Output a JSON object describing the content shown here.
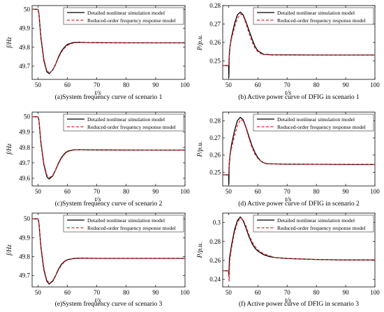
{
  "legend": {
    "detailed": "Detailed nonlinear simulation model",
    "reduced": "Reduced-order frequency response model"
  },
  "colors": {
    "detailed": "#000000",
    "reduced": "#e8202a"
  },
  "chart_data": [
    {
      "type": "line",
      "caption": "(a)System frequency curve of scenario 1",
      "xlabel": "t/s",
      "ylabel": "f/Hz",
      "xlim": [
        48,
        100
      ],
      "ylim": [
        49.63,
        50.02
      ],
      "xticks": [
        50,
        60,
        70,
        80,
        90,
        100
      ],
      "yticks": [
        49.7,
        49.8,
        49.9,
        50
      ],
      "series": [
        {
          "name": "Detailed nonlinear simulation model",
          "x": [
            48,
            50,
            50.3,
            51,
            52,
            53,
            53.8,
            55,
            56,
            57,
            58,
            59,
            60,
            62,
            64,
            66,
            70,
            80,
            90,
            100
          ],
          "y": [
            50.0,
            50.0,
            49.98,
            49.85,
            49.73,
            49.67,
            49.66,
            49.68,
            49.71,
            49.75,
            49.78,
            49.8,
            49.815,
            49.825,
            49.826,
            49.825,
            49.824,
            49.823,
            49.823,
            49.823
          ]
        },
        {
          "name": "Reduced-order frequency response model",
          "x": [
            48,
            50,
            50.3,
            51,
            52,
            53,
            54,
            55,
            56,
            57,
            58,
            59,
            60,
            62,
            64,
            66,
            70,
            80,
            90,
            100
          ],
          "y": [
            50.0,
            50.0,
            49.98,
            49.86,
            49.74,
            49.675,
            49.665,
            49.68,
            49.71,
            49.745,
            49.775,
            49.795,
            49.81,
            49.822,
            49.825,
            49.825,
            49.824,
            49.823,
            49.823,
            49.823
          ]
        }
      ]
    },
    {
      "type": "line",
      "caption": "(b)  Active power curve of DFIG in scenario 1",
      "xlabel": "t/s",
      "ylabel": "P/p.u.",
      "xlim": [
        48,
        100
      ],
      "ylim": [
        0.24,
        0.28
      ],
      "xticks": [
        50,
        60,
        70,
        80,
        90,
        100
      ],
      "yticks": [
        0.25,
        0.26,
        0.27,
        0.28
      ],
      "series": [
        {
          "name": "Detailed nonlinear simulation model",
          "x": [
            48,
            50,
            50.1,
            50.2,
            50.5,
            51,
            52,
            53,
            54,
            55,
            56,
            57,
            58,
            59,
            60,
            61,
            62,
            63,
            65,
            70,
            80,
            90,
            100
          ],
          "y": [
            0.2475,
            0.2475,
            0.241,
            0.252,
            0.258,
            0.263,
            0.27,
            0.275,
            0.2765,
            0.275,
            0.271,
            0.2665,
            0.262,
            0.258,
            0.2555,
            0.2545,
            0.2535,
            0.2535,
            0.2533,
            0.2533,
            0.2532,
            0.2532,
            0.2532
          ]
        },
        {
          "name": "Reduced-order frequency response model",
          "x": [
            48,
            50,
            50.3,
            51,
            52,
            53,
            54,
            55,
            56,
            57,
            58,
            59,
            60,
            61,
            62,
            64,
            70,
            80,
            90,
            100
          ],
          "y": [
            0.2475,
            0.2475,
            0.256,
            0.262,
            0.268,
            0.273,
            0.2755,
            0.2745,
            0.27,
            0.265,
            0.2605,
            0.257,
            0.255,
            0.254,
            0.2535,
            0.2533,
            0.2532,
            0.2532,
            0.2532,
            0.2532
          ]
        }
      ]
    },
    {
      "type": "line",
      "caption": "(c)System frequency curve of scenario 2",
      "xlabel": "t/s",
      "ylabel": "f/Hz",
      "xlim": [
        48,
        100
      ],
      "ylim": [
        49.55,
        50.03
      ],
      "xticks": [
        50,
        60,
        70,
        80,
        90,
        100
      ],
      "yticks": [
        49.6,
        49.7,
        49.8,
        49.9,
        50
      ],
      "series": [
        {
          "name": "Detailed nonlinear simulation model",
          "x": [
            48,
            50,
            50.3,
            51,
            52,
            53,
            53.8,
            55,
            56,
            57,
            58,
            59,
            60,
            62,
            64,
            66,
            70,
            80,
            90,
            100
          ],
          "y": [
            50.0,
            50.0,
            49.98,
            49.83,
            49.69,
            49.61,
            49.595,
            49.615,
            49.655,
            49.7,
            49.735,
            49.76,
            49.775,
            49.785,
            49.786,
            49.785,
            49.784,
            49.783,
            49.783,
            49.783
          ]
        },
        {
          "name": "Reduced-order frequency response model",
          "x": [
            48,
            50,
            50.3,
            51,
            52,
            53,
            54,
            55,
            56,
            57,
            58,
            59,
            60,
            62,
            64,
            66,
            70,
            80,
            90,
            100
          ],
          "y": [
            50.0,
            50.0,
            49.98,
            49.84,
            49.7,
            49.62,
            49.605,
            49.62,
            49.655,
            49.695,
            49.73,
            49.755,
            49.772,
            49.783,
            49.786,
            49.786,
            49.785,
            49.784,
            49.783,
            49.783
          ]
        }
      ]
    },
    {
      "type": "line",
      "caption": "(d)  Active power curve of DFIG in scenario 2",
      "xlabel": "t/s",
      "ylabel": "P/p.u.",
      "xlim": [
        48,
        100
      ],
      "ylim": [
        0.242,
        0.285
      ],
      "xticks": [
        50,
        60,
        70,
        80,
        90,
        100
      ],
      "yticks": [
        0.25,
        0.26,
        0.27,
        0.28
      ],
      "series": [
        {
          "name": "Detailed nonlinear simulation model",
          "x": [
            48,
            50,
            50.1,
            50.2,
            50.5,
            51,
            52,
            53,
            54,
            55,
            56,
            57,
            58,
            59,
            60,
            61,
            62,
            63,
            65,
            70,
            80,
            90,
            100
          ],
          "y": [
            0.2485,
            0.2485,
            0.243,
            0.254,
            0.26,
            0.266,
            0.274,
            0.28,
            0.282,
            0.2805,
            0.276,
            0.2705,
            0.2655,
            0.2615,
            0.2585,
            0.2565,
            0.2555,
            0.255,
            0.2548,
            0.2547,
            0.2546,
            0.2545,
            0.2545
          ]
        },
        {
          "name": "Reduced-order frequency response model",
          "x": [
            48,
            50,
            50.3,
            51,
            52,
            53,
            54,
            55,
            56,
            57,
            58,
            59,
            60,
            61,
            62,
            64,
            70,
            80,
            90,
            100
          ],
          "y": [
            0.2485,
            0.2485,
            0.258,
            0.264,
            0.271,
            0.277,
            0.2805,
            0.28,
            0.2755,
            0.2695,
            0.2645,
            0.2605,
            0.258,
            0.2565,
            0.2555,
            0.2549,
            0.2547,
            0.2546,
            0.2545,
            0.2545
          ]
        }
      ]
    },
    {
      "type": "line",
      "caption": "(e)System frequency curve of scenario 3",
      "xlabel": "t/s",
      "ylabel": "f/Hz",
      "xlim": [
        48,
        100
      ],
      "ylim": [
        49.64,
        50.03
      ],
      "xticks": [
        50,
        60,
        70,
        80,
        90,
        100
      ],
      "yticks": [
        49.7,
        49.8,
        49.9,
        50
      ],
      "series": [
        {
          "name": "Detailed nonlinear simulation model",
          "x": [
            48,
            50,
            50.3,
            51,
            52,
            53,
            53.8,
            55,
            56,
            57,
            58,
            59,
            60,
            62,
            64,
            66,
            70,
            80,
            90,
            100
          ],
          "y": [
            50.0,
            50.0,
            49.98,
            49.85,
            49.73,
            49.67,
            49.655,
            49.67,
            49.7,
            49.735,
            49.76,
            49.775,
            49.784,
            49.79,
            49.792,
            49.792,
            49.791,
            49.791,
            49.791,
            49.791
          ]
        },
        {
          "name": "Reduced-order frequency response model",
          "x": [
            48,
            50,
            50.3,
            51,
            52,
            53,
            54,
            55,
            56,
            57,
            58,
            59,
            60,
            62,
            64,
            66,
            70,
            80,
            90,
            100
          ],
          "y": [
            50.0,
            50.0,
            49.98,
            49.86,
            49.74,
            49.675,
            49.66,
            49.675,
            49.7,
            49.73,
            49.755,
            49.772,
            49.782,
            49.789,
            49.791,
            49.792,
            49.791,
            49.791,
            49.791,
            49.791
          ]
        }
      ]
    },
    {
      "type": "line",
      "caption": "(f)  Active power curve of DFIG in scenario 3",
      "xlabel": "t/s",
      "ylabel": "P/p.u.",
      "xlim": [
        48,
        100
      ],
      "ylim": [
        0.232,
        0.31
      ],
      "xticks": [
        50,
        60,
        70,
        80,
        90,
        100
      ],
      "yticks": [
        0.24,
        0.26,
        0.28,
        0.3
      ],
      "series": [
        {
          "name": "Detailed nonlinear simulation model",
          "x": [
            48,
            50,
            50.1,
            50.3,
            51,
            52,
            53,
            54,
            55,
            56,
            57,
            58,
            59,
            60,
            62,
            64,
            66,
            70,
            80,
            90,
            100
          ],
          "y": [
            0.249,
            0.249,
            0.243,
            0.262,
            0.276,
            0.292,
            0.302,
            0.306,
            0.302,
            0.294,
            0.285,
            0.278,
            0.273,
            0.27,
            0.266,
            0.264,
            0.263,
            0.262,
            0.261,
            0.2605,
            0.2605
          ]
        },
        {
          "name": "Reduced-order frequency response model",
          "x": [
            48,
            50,
            50.2,
            50.4,
            51,
            52,
            53,
            54,
            55,
            56,
            57,
            58,
            59,
            60,
            62,
            64,
            66,
            70,
            80,
            90,
            100
          ],
          "y": [
            0.249,
            0.249,
            0.238,
            0.26,
            0.273,
            0.289,
            0.3,
            0.305,
            0.303,
            0.296,
            0.287,
            0.28,
            0.275,
            0.271,
            0.267,
            0.265,
            0.263,
            0.262,
            0.261,
            0.2605,
            0.2605
          ]
        }
      ]
    }
  ]
}
